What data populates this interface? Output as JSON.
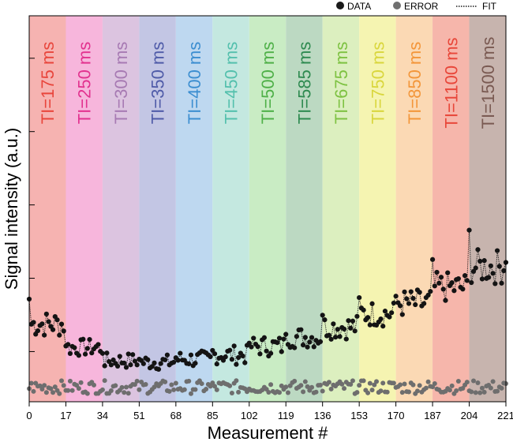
{
  "chart_data": {
    "type": "scatter",
    "title": "",
    "xlabel": "Measurement #",
    "ylabel": "Signal intensity (a.u.)",
    "xlim": [
      0,
      221
    ],
    "ylim": [
      0,
      1
    ],
    "x_ticks": [
      0,
      17,
      34,
      51,
      68,
      85,
      102,
      119,
      136,
      153,
      170,
      187,
      204,
      221
    ],
    "y_tick_labels_shown": false,
    "legend": {
      "position": "top-right",
      "entries": [
        {
          "label": "DATA",
          "marker": "filled-circle",
          "color": "#1a1a1a"
        },
        {
          "label": "ERROR",
          "marker": "filled-circle",
          "color": "#707070"
        },
        {
          "label": "FIT",
          "marker": "dotted-line",
          "color": "#1a1a1a"
        }
      ]
    },
    "bands": [
      {
        "label": "TI=175 ms",
        "x0": 0,
        "x1": 17,
        "fill": "#f6b3b1",
        "text_color": "#e8463c"
      },
      {
        "label": "TI=250 ms",
        "x0": 17,
        "x1": 34,
        "fill": "#f7b6dc",
        "text_color": "#e2328f"
      },
      {
        "label": "TI=300 ms",
        "x0": 34,
        "x1": 51,
        "fill": "#dcc4e0",
        "text_color": "#a77ab3"
      },
      {
        "label": "TI=350 ms",
        "x0": 51,
        "x1": 68,
        "fill": "#c3c6e4",
        "text_color": "#4f5ba8"
      },
      {
        "label": "TI=400 ms",
        "x0": 68,
        "x1": 85,
        "fill": "#bed8f0",
        "text_color": "#3c8ed0"
      },
      {
        "label": "TI=450 ms",
        "x0": 85,
        "x1": 102,
        "fill": "#c4e8e0",
        "text_color": "#54c0ad"
      },
      {
        "label": "TI=500 ms",
        "x0": 102,
        "x1": 119,
        "fill": "#c9ecc4",
        "text_color": "#4fb048"
      },
      {
        "label": "TI=585 ms",
        "x0": 119,
        "x1": 136,
        "fill": "#bcd9c2",
        "text_color": "#2e8a50"
      },
      {
        "label": "TI=675 ms",
        "x0": 136,
        "x1": 153,
        "fill": "#dcefbf",
        "text_color": "#7ec242"
      },
      {
        "label": "TI=750 ms",
        "x0": 153,
        "x1": 170,
        "fill": "#f5f4b1",
        "text_color": "#d9d63d"
      },
      {
        "label": "TI=850 ms",
        "x0": 170,
        "x1": 187,
        "fill": "#fbd9b4",
        "text_color": "#f3963a"
      },
      {
        "label": "TI=1100 ms",
        "x0": 187,
        "x1": 204,
        "fill": "#f6b6ab",
        "text_color": "#e8473a"
      },
      {
        "label": "TI=1500 ms",
        "x0": 204,
        "x1": 221,
        "fill": "#c7b4ae",
        "text_color": "#7a5a52"
      }
    ],
    "segment_levels": [
      {
        "x0": 0,
        "x1": 17,
        "base": 0.53,
        "spread": 0.03,
        "first": 0.7
      },
      {
        "x0": 17,
        "x1": 34,
        "base": 0.37,
        "spread": 0.02,
        "first": 0.38
      },
      {
        "x0": 34,
        "x1": 51,
        "base": 0.28,
        "spread": 0.018,
        "first": 0.33
      },
      {
        "x0": 51,
        "x1": 68,
        "base": 0.27,
        "spread": 0.018,
        "first": 0.29
      },
      {
        "x0": 68,
        "x1": 85,
        "base": 0.29,
        "spread": 0.02,
        "first": 0.3
      },
      {
        "x0": 85,
        "x1": 102,
        "base": 0.32,
        "spread": 0.022,
        "first": 0.35
      },
      {
        "x0": 102,
        "x1": 119,
        "base": 0.38,
        "spread": 0.024,
        "first": 0.4
      },
      {
        "x0": 119,
        "x1": 136,
        "base": 0.44,
        "spread": 0.025,
        "first": 0.46
      },
      {
        "x0": 136,
        "x1": 153,
        "base": 0.51,
        "spread": 0.028,
        "first": 0.59
      },
      {
        "x0": 153,
        "x1": 170,
        "base": 0.6,
        "spread": 0.03,
        "first": 0.71
      },
      {
        "x0": 170,
        "x1": 187,
        "base": 0.67,
        "spread": 0.033,
        "first": 0.72
      },
      {
        "x0": 187,
        "x1": 204,
        "base": 0.78,
        "spread": 0.035,
        "first": 0.97
      },
      {
        "x0": 204,
        "x1": 221,
        "base": 0.92,
        "spread": 0.04,
        "first": 1.17
      }
    ],
    "error_level": 0.1,
    "error_spread": 0.025
  }
}
